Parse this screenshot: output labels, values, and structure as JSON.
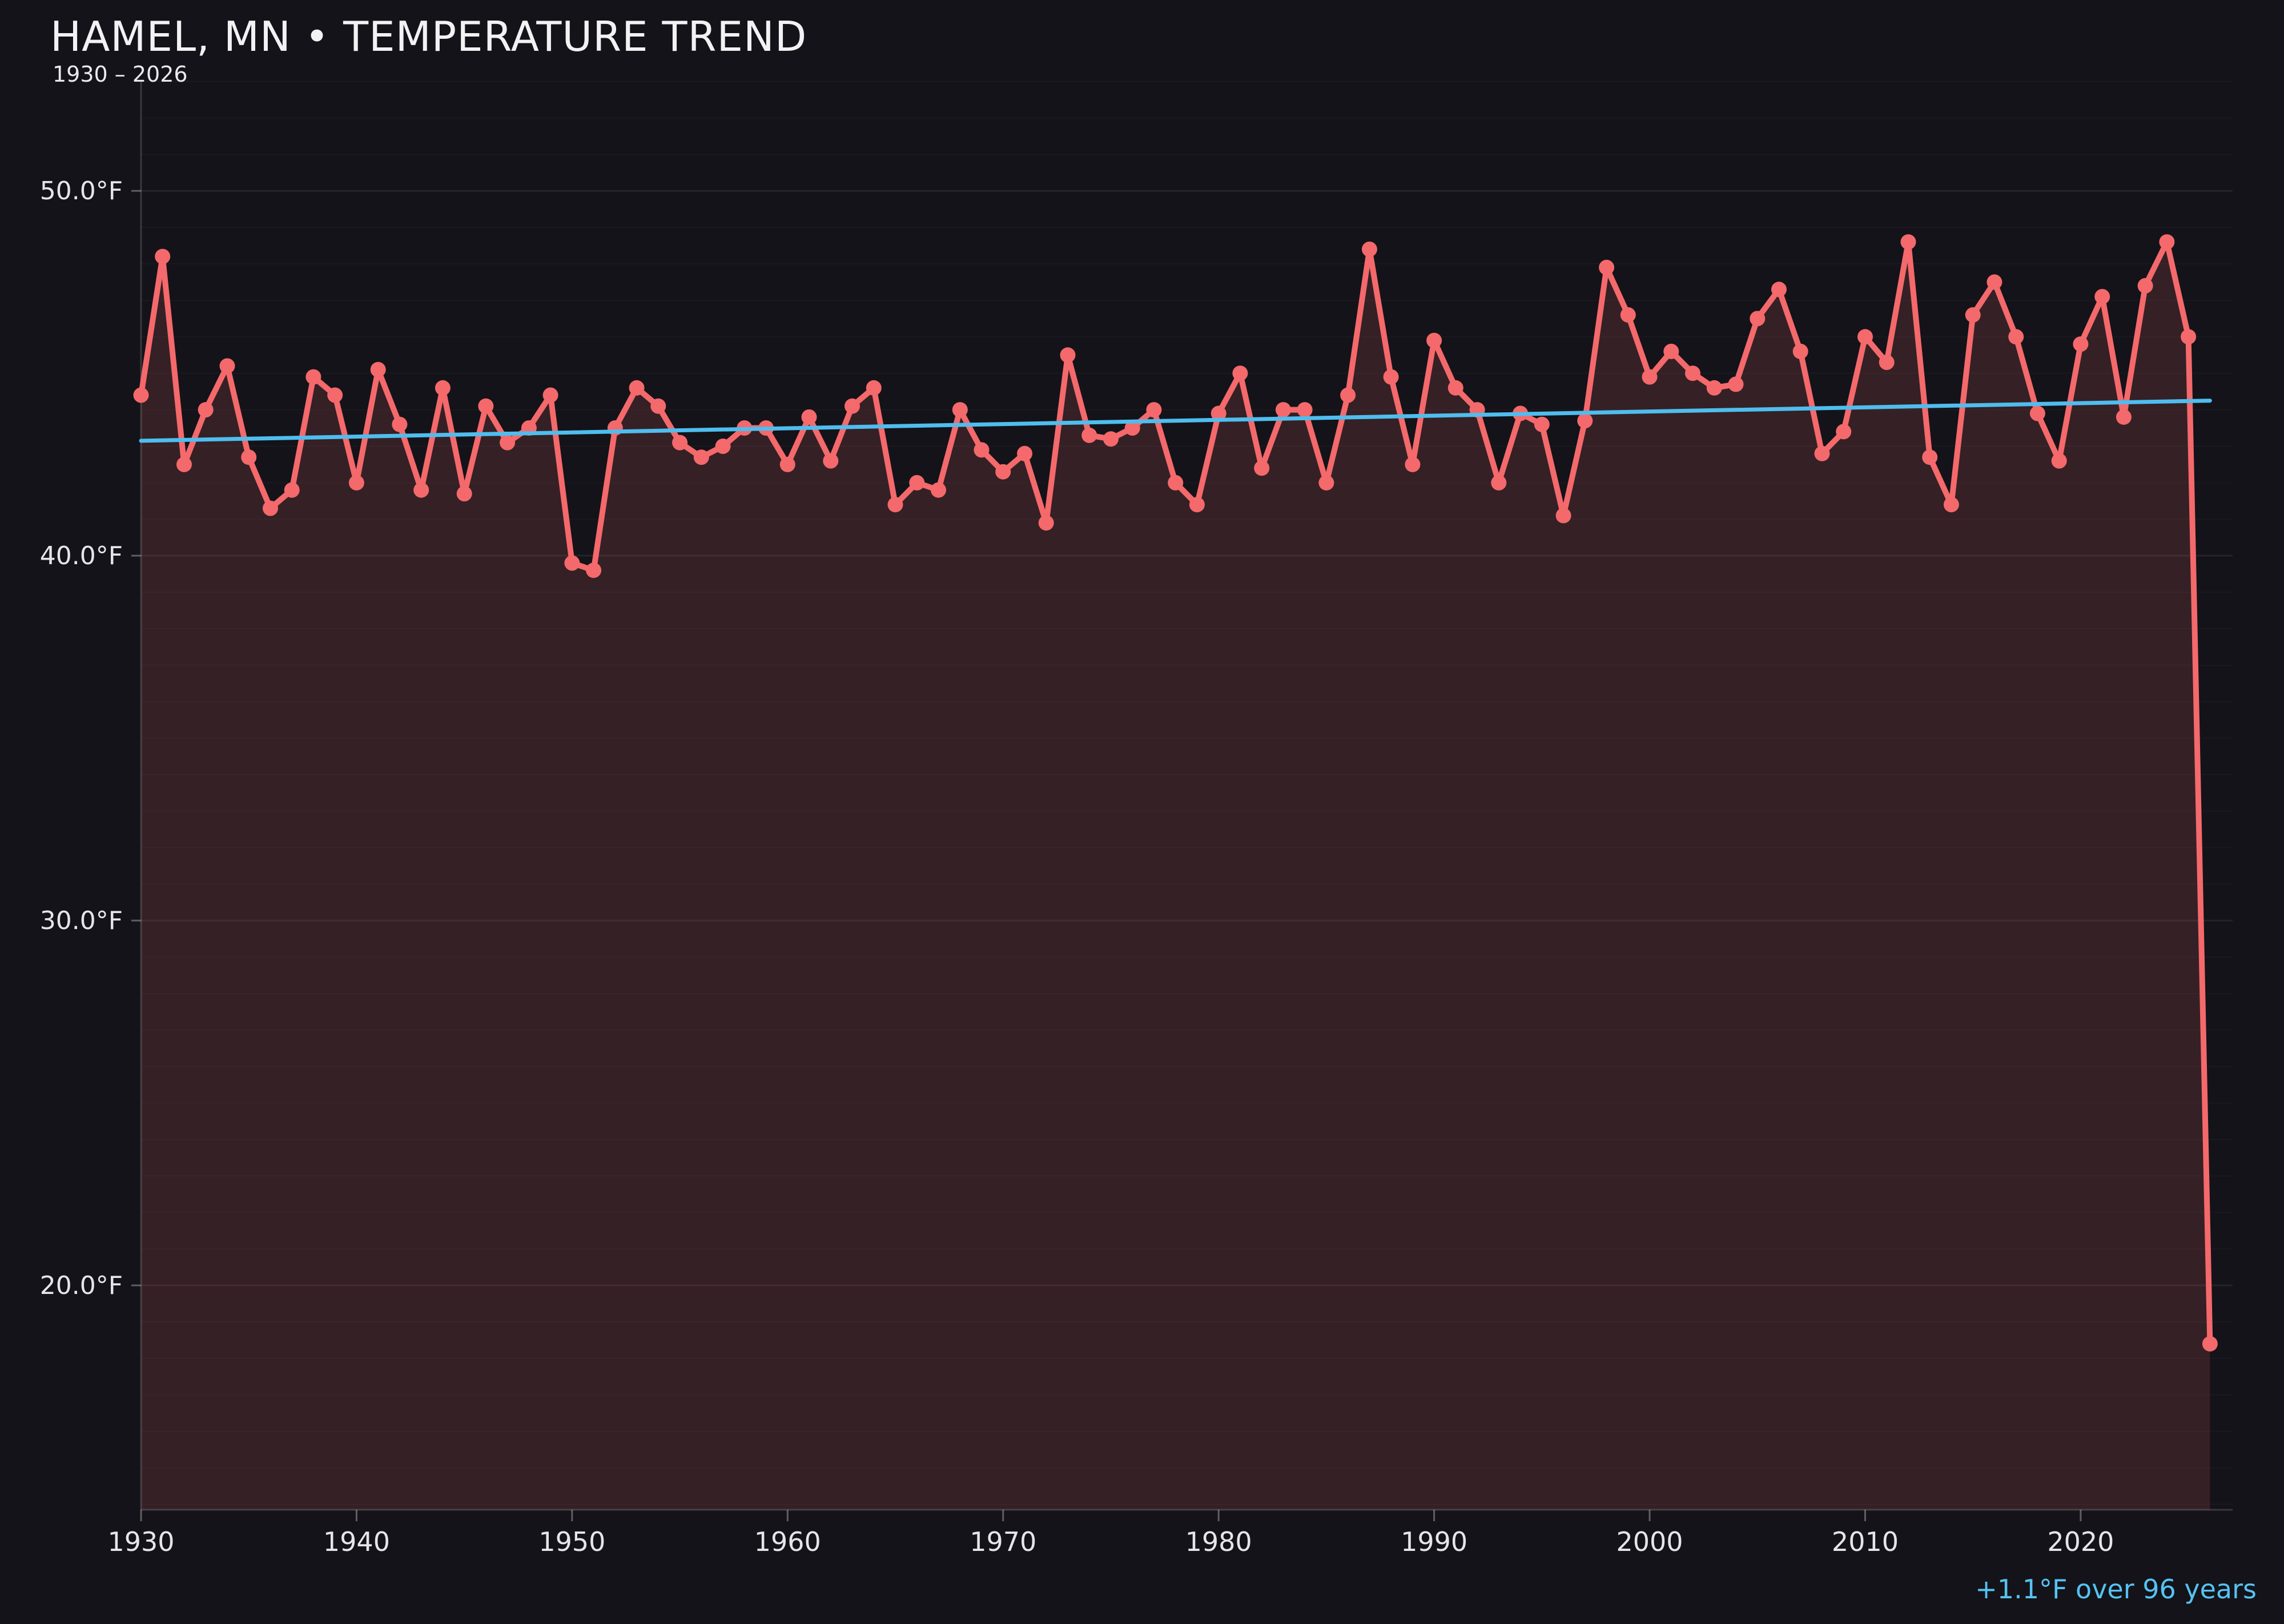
{
  "header": {
    "title": "HAMEL, MN • TEMPERATURE TREND",
    "subtitle": "1930 – 2026"
  },
  "annotation": {
    "trend_summary": "+1.1°F over 96 years"
  },
  "colors": {
    "background": "#141319",
    "line": "#f4696b",
    "fill": "#f4696b",
    "fill_opacity": 0.15,
    "trend": "#4fbdee",
    "annotation_text": "#55c3f2",
    "title_text": "#f2f2f4",
    "tick_label_text": "#e6e6ea",
    "grid_major": "rgba(255,255,255,0.07)",
    "grid_minor": "rgba(255,255,255,0.028)",
    "axis_line": "rgba(255,255,255,0.16)",
    "axis_tick": "rgba(255,255,255,0.32)"
  },
  "chart_data": {
    "type": "line",
    "title": "HAMEL, MN • TEMPERATURE TREND",
    "subtitle": "1930 – 2026",
    "xlabel": "",
    "ylabel": "°F",
    "legend": "none",
    "grid": "minor every 1°F, major every 10°F",
    "xlim": [
      1930,
      2027.05
    ],
    "ylim": [
      13.85,
      53.04
    ],
    "xticks": [
      1930,
      1940,
      1950,
      1960,
      1970,
      1980,
      1990,
      2000,
      2010,
      2020
    ],
    "yticks": [
      {
        "value": 50,
        "label": "50.0°F"
      },
      {
        "value": 40,
        "label": "40.0°F"
      },
      {
        "value": 30,
        "label": "30.0°F"
      },
      {
        "value": 20,
        "label": "20.0°F"
      }
    ],
    "years": [
      1930,
      1931,
      1932,
      1933,
      1934,
      1935,
      1936,
      1937,
      1938,
      1939,
      1940,
      1941,
      1942,
      1943,
      1944,
      1945,
      1946,
      1947,
      1948,
      1949,
      1950,
      1951,
      1952,
      1953,
      1954,
      1955,
      1956,
      1957,
      1958,
      1959,
      1960,
      1961,
      1962,
      1963,
      1964,
      1965,
      1966,
      1967,
      1968,
      1969,
      1970,
      1971,
      1972,
      1973,
      1974,
      1975,
      1976,
      1977,
      1978,
      1979,
      1980,
      1981,
      1982,
      1983,
      1984,
      1985,
      1986,
      1987,
      1988,
      1989,
      1990,
      1991,
      1992,
      1993,
      1994,
      1995,
      1996,
      1997,
      1998,
      1999,
      2000,
      2001,
      2002,
      2003,
      2004,
      2005,
      2006,
      2007,
      2008,
      2009,
      2010,
      2011,
      2012,
      2013,
      2014,
      2015,
      2016,
      2017,
      2018,
      2019,
      2020,
      2021,
      2022,
      2023,
      2024,
      2025,
      2026
    ],
    "series": [
      {
        "name": "annual-temperature-f",
        "values": [
          44.4,
          48.2,
          42.5,
          44.0,
          45.2,
          42.7,
          41.3,
          41.8,
          44.9,
          44.4,
          42.0,
          45.1,
          43.6,
          41.8,
          44.6,
          41.7,
          44.1,
          43.1,
          43.5,
          44.4,
          39.8,
          39.6,
          43.5,
          44.6,
          44.1,
          43.1,
          42.7,
          43.0,
          43.5,
          43.5,
          42.5,
          43.8,
          42.6,
          44.1,
          44.6,
          41.4,
          42.0,
          41.8,
          44.0,
          42.9,
          42.3,
          42.8,
          40.9,
          45.5,
          43.3,
          43.2,
          43.5,
          44.0,
          42.0,
          41.4,
          43.9,
          45.0,
          42.4,
          44.0,
          44.0,
          42.0,
          44.4,
          48.4,
          44.9,
          42.5,
          45.9,
          44.6,
          44.0,
          42.0,
          43.9,
          43.6,
          41.1,
          43.7,
          47.9,
          46.6,
          44.9,
          45.6,
          45.0,
          44.6,
          44.7,
          46.5,
          47.3,
          45.6,
          42.8,
          43.4,
          46.0,
          45.3,
          48.6,
          42.7,
          41.4,
          46.6,
          47.5,
          46.0,
          43.9,
          42.6,
          45.8,
          47.1,
          43.8,
          47.4,
          48.6,
          46.0,
          18.4
        ]
      }
    ],
    "trendline": {
      "x0": 1930,
      "y0": 43.15,
      "x1": 2026,
      "y1": 44.25,
      "label": "+1.1°F over 96 years"
    }
  }
}
